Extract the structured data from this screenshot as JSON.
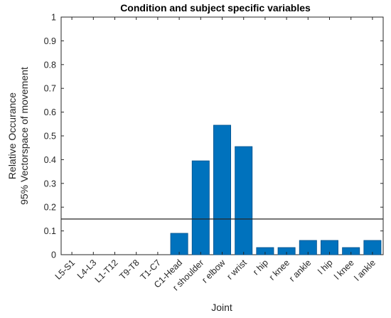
{
  "chart_data": {
    "type": "bar",
    "title": "Condition and subject specific variables",
    "xlabel": "Joint",
    "ylabel_lines": [
      "Relative Occurance",
      "95% Vectorspace of movement"
    ],
    "categories": [
      "L5-S1",
      "L4-L3",
      "L1-T12",
      "T9-T8",
      "T1-C7",
      "C1-Head",
      "r shoulder",
      "r elbow",
      "r wrist",
      "r hip",
      "r knee",
      "r ankle",
      "l hip",
      "l knee",
      "l ankle"
    ],
    "values": [
      0,
      0,
      0,
      0,
      0,
      0.09,
      0.395,
      0.545,
      0.455,
      0.03,
      0.03,
      0.06,
      0.06,
      0.03,
      0.06
    ],
    "ylim": [
      0,
      1
    ],
    "yticks": [
      "0",
      "0.1",
      "0.2",
      "0.3",
      "0.4",
      "0.5",
      "0.6",
      "0.7",
      "0.8",
      "0.9",
      "1"
    ],
    "threshold_line": 0.15,
    "grid": false,
    "bar_color": "#0072BD",
    "bar_edge_color": "#00508A"
  }
}
